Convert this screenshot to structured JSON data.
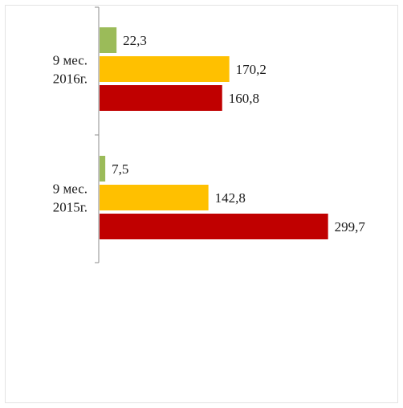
{
  "chart_data": {
    "type": "bar",
    "orientation": "horizontal",
    "categories": [
      [
        "9 мес.",
        "2016г."
      ],
      [
        "9 мес.",
        "2015г."
      ]
    ],
    "series": [
      {
        "values": [
          22.3,
          7.5
        ],
        "labels": [
          "22,3",
          "7,5"
        ],
        "color": "#9bbb59"
      },
      {
        "values": [
          170.2,
          142.8
        ],
        "labels": [
          "170,2",
          "142,8"
        ],
        "color": "#ffc000"
      },
      {
        "values": [
          160.8,
          299.7
        ],
        "labels": [
          "160,8",
          "299,7"
        ],
        "color": "#c00000"
      }
    ],
    "title": "",
    "xlabel": "",
    "ylabel": "",
    "xlim": [
      0,
      300
    ],
    "grid": false,
    "legend": "none"
  }
}
